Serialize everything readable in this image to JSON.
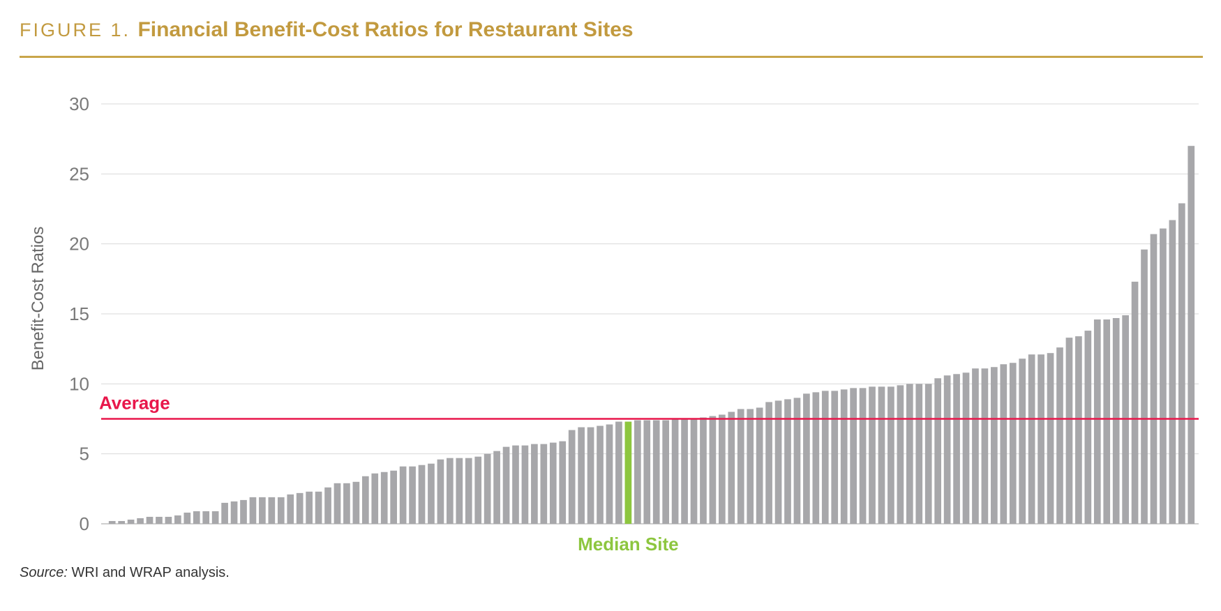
{
  "figure": {
    "label": "FIGURE 1.",
    "title": "Financial Benefit-Cost Ratios for Restaurant Sites"
  },
  "source": {
    "label": "Source:",
    "text": " WRI and WRAP analysis."
  },
  "colors": {
    "accent": "#c29a3f",
    "bar": "#a7a7aa",
    "median_bar": "#8dc63f",
    "average_line": "#e8174b",
    "grid": "#d9d9d9",
    "axis_text": "#7a7a7a"
  },
  "chart_data": {
    "type": "bar",
    "title": "Financial Benefit-Cost Ratios for Restaurant Sites",
    "xlabel": "",
    "ylabel": "Benefit-Cost Ratios",
    "ylim": [
      0,
      30
    ],
    "yticks": [
      0,
      5,
      10,
      15,
      20,
      25,
      30
    ],
    "grid": true,
    "median_label": "Median Site",
    "median_index": 55,
    "average_label": "Average",
    "average_value": 7.5,
    "values": [
      0.2,
      0.2,
      0.3,
      0.4,
      0.5,
      0.5,
      0.5,
      0.6,
      0.8,
      0.9,
      0.9,
      0.9,
      1.5,
      1.6,
      1.7,
      1.9,
      1.9,
      1.9,
      1.9,
      2.1,
      2.2,
      2.3,
      2.3,
      2.6,
      2.9,
      2.9,
      3.0,
      3.4,
      3.6,
      3.7,
      3.8,
      4.1,
      4.1,
      4.2,
      4.3,
      4.6,
      4.7,
      4.7,
      4.7,
      4.8,
      5.0,
      5.2,
      5.5,
      5.6,
      5.6,
      5.7,
      5.7,
      5.8,
      5.9,
      6.7,
      6.9,
      6.9,
      7.0,
      7.1,
      7.3,
      7.3,
      7.4,
      7.4,
      7.4,
      7.4,
      7.5,
      7.5,
      7.5,
      7.6,
      7.7,
      7.8,
      8.0,
      8.2,
      8.2,
      8.3,
      8.7,
      8.8,
      8.9,
      9.0,
      9.3,
      9.4,
      9.5,
      9.5,
      9.6,
      9.7,
      9.7,
      9.8,
      9.8,
      9.8,
      9.9,
      10.0,
      10.0,
      10.0,
      10.4,
      10.6,
      10.7,
      10.8,
      11.1,
      11.1,
      11.2,
      11.4,
      11.5,
      11.8,
      12.1,
      12.1,
      12.2,
      12.6,
      13.3,
      13.4,
      13.8,
      14.6,
      14.6,
      14.7,
      14.9,
      17.3,
      19.6,
      20.7,
      21.1,
      21.7,
      22.9,
      27.0
    ]
  }
}
